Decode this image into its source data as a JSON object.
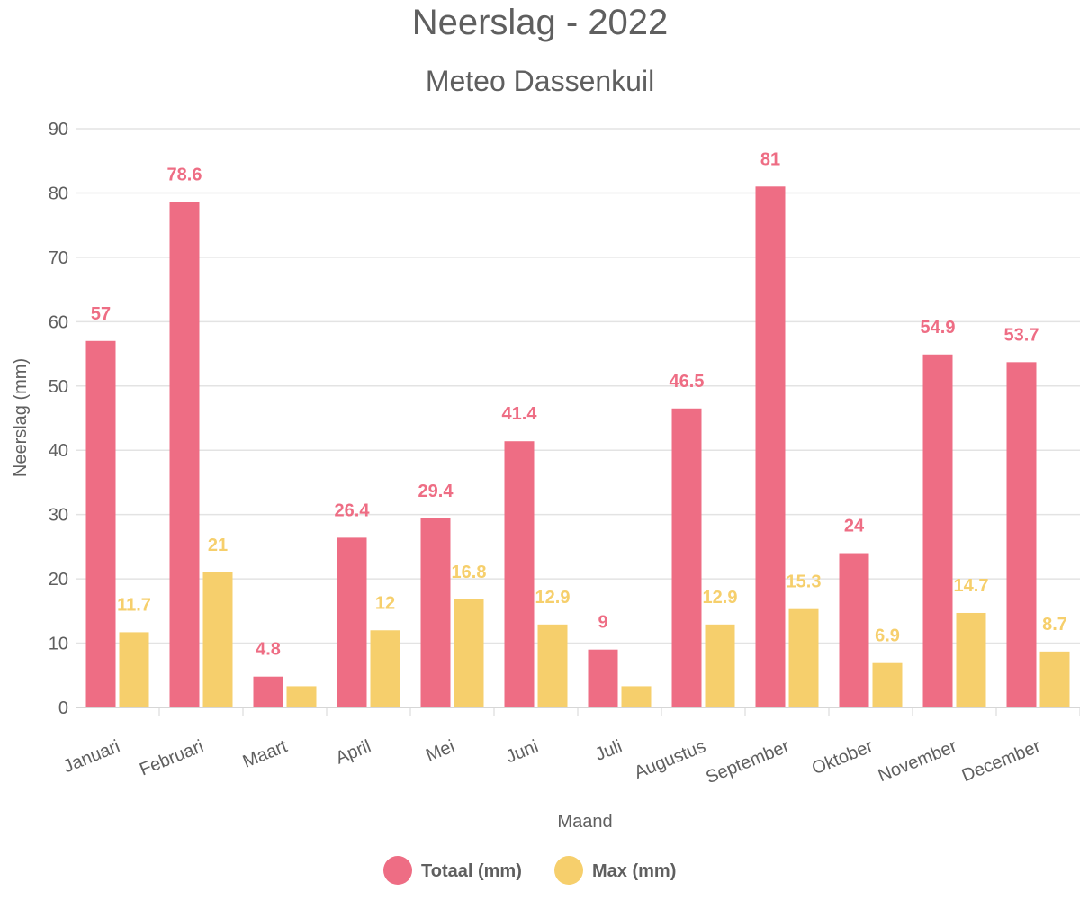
{
  "chart_data": {
    "type": "bar",
    "title": "Neerslag - 2022",
    "subtitle": "Meteo Dassenkuil",
    "xlabel": "Maand",
    "ylabel": "Neerslag (mm)",
    "ylim": [
      0,
      90
    ],
    "yticks": [
      0,
      10,
      20,
      30,
      40,
      50,
      60,
      70,
      80,
      90
    ],
    "grid": true,
    "legend_position": "bottom-center",
    "categories": [
      "Januari",
      "Februari",
      "Maart",
      "April",
      "Mei",
      "Juni",
      "Juli",
      "Augustus",
      "September",
      "Oktober",
      "November",
      "December"
    ],
    "series": [
      {
        "name": "Totaal (mm)",
        "color": "#ee6d84",
        "values": [
          57,
          78.6,
          4.8,
          26.4,
          29.4,
          41.4,
          9,
          46.5,
          81,
          24,
          54.9,
          53.7
        ],
        "labels": [
          "57",
          "78.6",
          "4.8",
          "26.4",
          "29.4",
          "41.4",
          "9",
          "46.5",
          "81",
          "24",
          "54.9",
          "53.7"
        ]
      },
      {
        "name": "Max (mm)",
        "color": "#f6cf6c",
        "values": [
          11.7,
          21,
          3.3,
          12,
          16.8,
          12.9,
          3.3,
          12.9,
          15.3,
          6.9,
          14.7,
          8.7
        ],
        "labels": [
          "11.7",
          "21",
          "",
          "12",
          "16.8",
          "12.9",
          "",
          "12.9",
          "15.3",
          "6.9",
          "14.7",
          "8.7"
        ]
      }
    ]
  }
}
